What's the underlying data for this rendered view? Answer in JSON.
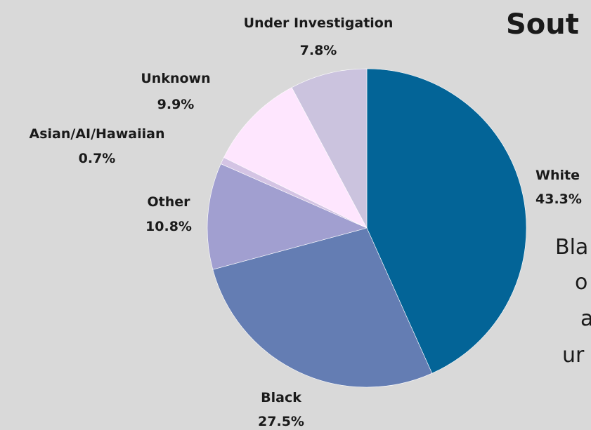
{
  "title": "Sout",
  "body_text": [
    "Bla",
    "o",
    "a",
    "ur"
  ],
  "chart_data": {
    "type": "pie",
    "title": "Sout",
    "start_angle_deg": 0,
    "direction": "clockwise",
    "slices": [
      {
        "name": "White",
        "value": 43.3,
        "label": "43.3%",
        "color": "#036497"
      },
      {
        "name": "Black",
        "value": 27.5,
        "label": "27.5%",
        "color": "#647db3"
      },
      {
        "name": "Other",
        "value": 10.8,
        "label": "10.8%",
        "color": "#a19fd0"
      },
      {
        "name": "Asian/AI/Hawaiian",
        "value": 0.7,
        "label": "0.7%",
        "color": "#d4c4e4"
      },
      {
        "name": "Unknown",
        "value": 9.9,
        "label": "9.9%",
        "color": "#fee6fe"
      },
      {
        "name": "Under Investigation",
        "value": 7.8,
        "label": "7.8%",
        "color": "#cbc3de"
      }
    ]
  }
}
